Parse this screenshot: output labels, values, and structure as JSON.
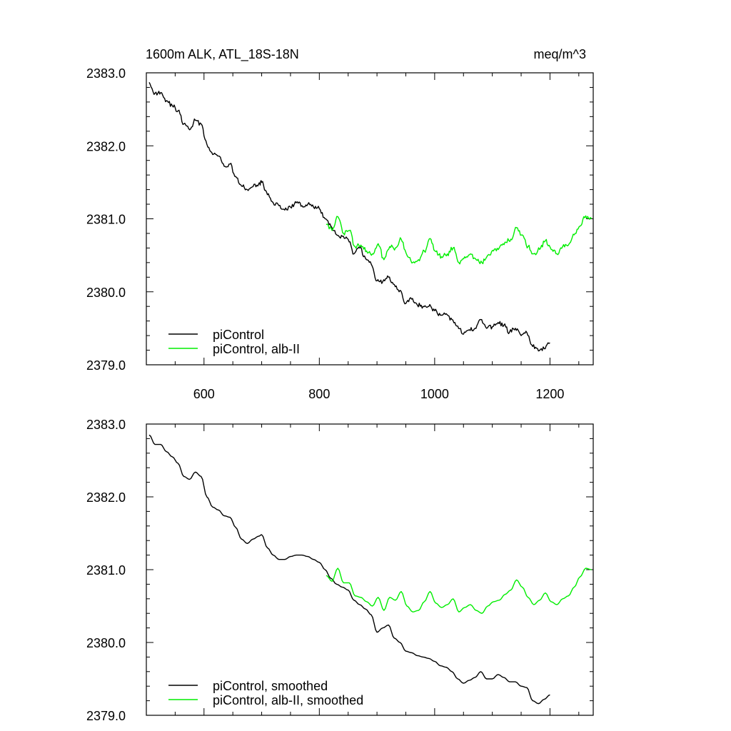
{
  "chart_data": [
    {
      "type": "line",
      "title": "1600m ALK, ATL_18S-18N",
      "units": "meq/m^3",
      "xlim": [
        500,
        1275
      ],
      "ylim": [
        2379.0,
        2383.0
      ],
      "x_ticks": [
        "600",
        "800",
        "1000",
        "1200"
      ],
      "y_ticks": [
        "2383.0",
        "2382.0",
        "2381.0",
        "2380.0",
        "2379.0"
      ],
      "legend_position": "bottom-left",
      "series": [
        {
          "name": "piControl",
          "color": "#000000",
          "x": [
            505,
            515,
            525,
            535,
            545,
            555,
            565,
            575,
            585,
            595,
            605,
            615,
            625,
            635,
            645,
            655,
            665,
            675,
            685,
            695,
            700,
            710,
            720,
            730,
            740,
            750,
            760,
            770,
            780,
            790,
            800,
            810,
            820,
            830,
            840,
            850,
            860,
            870,
            880,
            890,
            900,
            910,
            920,
            930,
            940,
            950,
            960,
            970,
            980,
            990,
            1000,
            1010,
            1020,
            1030,
            1040,
            1050,
            1060,
            1070,
            1080,
            1090,
            1100,
            1110,
            1120,
            1130,
            1140,
            1150,
            1160,
            1170,
            1180,
            1190,
            1200
          ],
          "values": [
            2382.87,
            2382.72,
            2382.73,
            2382.62,
            2382.55,
            2382.48,
            2382.3,
            2382.22,
            2382.35,
            2382.3,
            2382.02,
            2381.88,
            2381.86,
            2381.72,
            2381.75,
            2381.58,
            2381.45,
            2381.4,
            2381.44,
            2381.48,
            2381.5,
            2381.33,
            2381.22,
            2381.18,
            2381.12,
            2381.16,
            2381.22,
            2381.18,
            2381.2,
            2381.16,
            2381.14,
            2381.0,
            2380.9,
            2380.78,
            2380.76,
            2380.72,
            2380.52,
            2380.6,
            2380.46,
            2380.38,
            2380.15,
            2380.14,
            2380.2,
            2380.1,
            2380.02,
            2379.84,
            2379.9,
            2379.82,
            2379.8,
            2379.8,
            2379.74,
            2379.68,
            2379.7,
            2379.62,
            2379.53,
            2379.42,
            2379.48,
            2379.5,
            2379.62,
            2379.5,
            2379.52,
            2379.58,
            2379.54,
            2379.45,
            2379.5,
            2379.4,
            2379.44,
            2379.25,
            2379.19,
            2379.22,
            2379.3
          ]
        },
        {
          "name": "piControl, alb-II",
          "color": "#00ee00",
          "x": [
            812,
            822,
            832,
            842,
            852,
            862,
            872,
            882,
            892,
            902,
            912,
            922,
            932,
            942,
            952,
            962,
            972,
            982,
            992,
            1002,
            1012,
            1022,
            1032,
            1042,
            1052,
            1062,
            1072,
            1082,
            1092,
            1102,
            1112,
            1122,
            1132,
            1142,
            1152,
            1162,
            1172,
            1182,
            1192,
            1202,
            1212,
            1222,
            1232,
            1242,
            1252,
            1262,
            1272
          ],
          "values": [
            2380.92,
            2380.84,
            2381.03,
            2380.8,
            2380.84,
            2380.62,
            2380.64,
            2380.56,
            2380.52,
            2380.66,
            2380.44,
            2380.62,
            2380.6,
            2380.72,
            2380.5,
            2380.4,
            2380.44,
            2380.56,
            2380.73,
            2380.55,
            2380.48,
            2380.52,
            2380.6,
            2380.4,
            2380.48,
            2380.52,
            2380.44,
            2380.4,
            2380.5,
            2380.56,
            2380.6,
            2380.68,
            2380.72,
            2380.88,
            2380.78,
            2380.62,
            2380.52,
            2380.58,
            2380.7,
            2380.58,
            2380.52,
            2380.62,
            2380.64,
            2380.78,
            2380.9,
            2381.04,
            2381.0
          ]
        }
      ]
    },
    {
      "type": "line",
      "xlim": [
        500,
        1275
      ],
      "ylim": [
        2379.0,
        2383.0
      ],
      "y_ticks": [
        "2383.0",
        "2382.0",
        "2381.0",
        "2380.0",
        "2379.0"
      ],
      "legend_position": "bottom-left",
      "series": [
        {
          "name": "piControl, smoothed",
          "color": "#000000",
          "x": [
            505,
            515,
            525,
            535,
            545,
            555,
            565,
            575,
            585,
            595,
            605,
            615,
            625,
            635,
            645,
            655,
            665,
            675,
            685,
            695,
            700,
            710,
            720,
            730,
            740,
            750,
            760,
            770,
            780,
            790,
            800,
            810,
            820,
            830,
            840,
            850,
            860,
            870,
            880,
            890,
            900,
            910,
            920,
            930,
            940,
            950,
            960,
            970,
            980,
            990,
            1000,
            1010,
            1020,
            1030,
            1040,
            1050,
            1060,
            1070,
            1080,
            1090,
            1100,
            1110,
            1120,
            1130,
            1140,
            1150,
            1160,
            1170,
            1180,
            1190,
            1200
          ],
          "values": [
            2382.85,
            2382.72,
            2382.72,
            2382.62,
            2382.55,
            2382.46,
            2382.28,
            2382.24,
            2382.34,
            2382.28,
            2382.0,
            2381.86,
            2381.82,
            2381.74,
            2381.72,
            2381.58,
            2381.42,
            2381.36,
            2381.42,
            2381.46,
            2381.48,
            2381.3,
            2381.2,
            2381.14,
            2381.14,
            2381.18,
            2381.2,
            2381.2,
            2381.18,
            2381.14,
            2381.1,
            2381.0,
            2380.88,
            2380.8,
            2380.76,
            2380.72,
            2380.58,
            2380.52,
            2380.46,
            2380.38,
            2380.14,
            2380.2,
            2380.24,
            2380.06,
            2380.0,
            2379.88,
            2379.86,
            2379.82,
            2379.8,
            2379.78,
            2379.74,
            2379.68,
            2379.66,
            2379.6,
            2379.5,
            2379.44,
            2379.48,
            2379.52,
            2379.6,
            2379.5,
            2379.5,
            2379.56,
            2379.52,
            2379.46,
            2379.46,
            2379.4,
            2379.38,
            2379.2,
            2379.16,
            2379.22,
            2379.28
          ]
        },
        {
          "name": "piControl, alb-II, smoothed",
          "color": "#00ee00",
          "x": [
            812,
            822,
            832,
            842,
            852,
            862,
            872,
            882,
            892,
            902,
            912,
            922,
            932,
            942,
            952,
            962,
            972,
            982,
            992,
            1002,
            1012,
            1022,
            1032,
            1042,
            1052,
            1062,
            1072,
            1082,
            1092,
            1102,
            1112,
            1122,
            1132,
            1142,
            1152,
            1162,
            1172,
            1182,
            1192,
            1202,
            1212,
            1222,
            1232,
            1242,
            1252,
            1262,
            1272
          ],
          "values": [
            2380.92,
            2380.84,
            2381.02,
            2380.82,
            2380.82,
            2380.64,
            2380.62,
            2380.56,
            2380.5,
            2380.62,
            2380.44,
            2380.62,
            2380.58,
            2380.7,
            2380.5,
            2380.42,
            2380.44,
            2380.56,
            2380.7,
            2380.54,
            2380.48,
            2380.52,
            2380.6,
            2380.42,
            2380.48,
            2380.52,
            2380.44,
            2380.4,
            2380.5,
            2380.56,
            2380.58,
            2380.66,
            2380.72,
            2380.86,
            2380.76,
            2380.62,
            2380.52,
            2380.58,
            2380.68,
            2380.56,
            2380.52,
            2380.6,
            2380.64,
            2380.76,
            2380.9,
            2381.02,
            2381.0
          ]
        }
      ]
    }
  ]
}
